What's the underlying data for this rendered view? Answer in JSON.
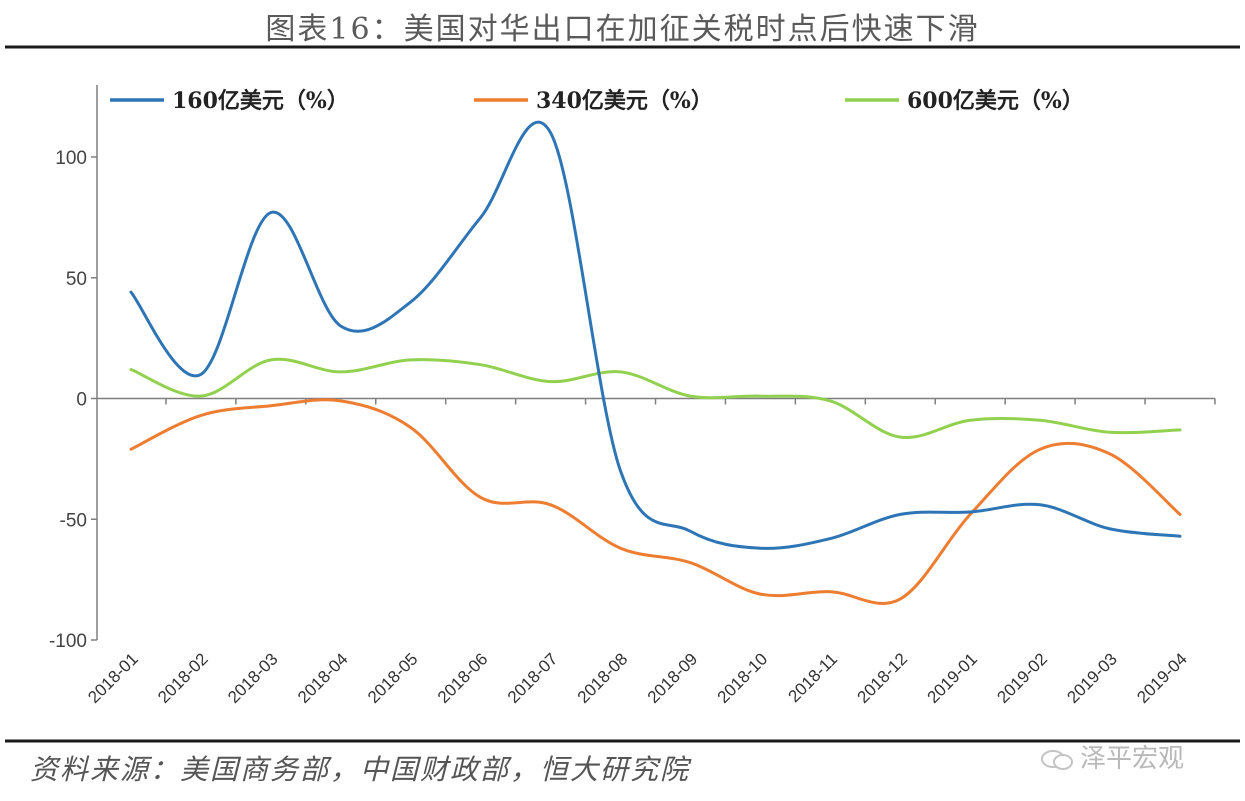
{
  "title": "图表16：美国对华出口在加征关税时点后快速下滑",
  "source": "资料来源：美国商务部，中国财政部，恒大研究院",
  "watermark": "泽平宏观",
  "chart_data": {
    "type": "line",
    "title": "图表16：美国对华出口在加征关税时点后快速下滑",
    "xlabel": "",
    "ylabel": "",
    "ylim": [
      -100,
      120
    ],
    "yticks": [
      -100,
      -50,
      0,
      50,
      100
    ],
    "grid": false,
    "legend_position": "top",
    "categories": [
      "2018-01",
      "2018-02",
      "2018-03",
      "2018-04",
      "2018-05",
      "2018-06",
      "2018-07",
      "2018-08",
      "2018-09",
      "2018-10",
      "2018-11",
      "2018-12",
      "2019-01",
      "2019-02",
      "2019-03",
      "2019-04"
    ],
    "series": [
      {
        "name": "160亿美元（%）",
        "color": "#2e75b6",
        "values": [
          44,
          10,
          77,
          30,
          40,
          75,
          110,
          -30,
          -55,
          -62,
          -58,
          -48,
          -47,
          -44,
          -54,
          -57
        ]
      },
      {
        "name": "340亿美元（%）",
        "color": "#ed7d31",
        "values": [
          -21,
          -7,
          -3,
          -1,
          -12,
          -41,
          -44,
          -62,
          -68,
          -81,
          -80,
          -83,
          -48,
          -21,
          -23,
          -48
        ]
      },
      {
        "name": "600亿美元（%）",
        "color": "#92d050",
        "values": [
          12,
          1,
          16,
          11,
          16,
          14,
          7,
          11,
          1,
          1,
          -1,
          -16,
          -9,
          -9,
          -14,
          -13
        ]
      }
    ]
  }
}
